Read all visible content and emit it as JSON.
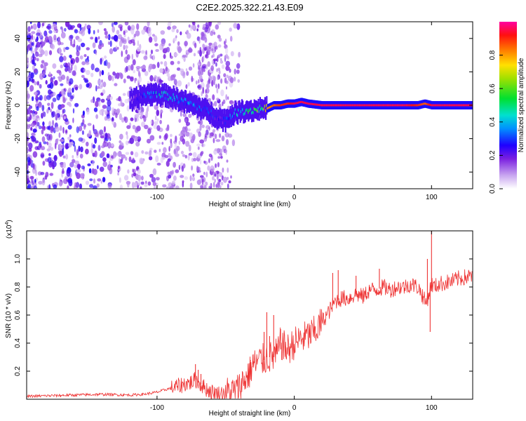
{
  "title": "C2E2.2025.322.21.43.E09",
  "chart_data": [
    {
      "type": "heatmap",
      "name": "spectrogram",
      "xlabel": "Height of straight line (km)",
      "ylabel": "Frequency (Hz)",
      "xlim": [
        -195,
        130
      ],
      "ylim": [
        -50,
        50
      ],
      "x_ticks": [
        -100,
        0,
        100
      ],
      "x_tick_labels": [
        "-100",
        "0",
        "100"
      ],
      "y_ticks": [
        -40,
        -20,
        0,
        20,
        40
      ],
      "y_tick_labels": [
        "-40",
        "-20",
        "0",
        "20",
        "40"
      ],
      "colorbar": {
        "label": "Normalized spectral amplitude",
        "range": [
          0,
          1
        ],
        "ticks": [
          0.0,
          0.2,
          0.4,
          0.6,
          0.8
        ],
        "tick_labels": [
          "0.0",
          "0.2",
          "0.4",
          "0.6",
          "0.8"
        ]
      },
      "ridge": {
        "x": [
          -120,
          -110,
          -100,
          -90,
          -80,
          -70,
          -60,
          -55,
          -50,
          -45,
          -40,
          -35,
          -30,
          -25,
          -20,
          -15,
          -10,
          -5,
          0,
          5,
          10,
          20,
          40,
          60,
          80,
          90,
          95,
          100,
          110,
          130
        ],
        "freq": [
          2,
          6,
          7,
          5,
          2,
          -1,
          -5,
          -8,
          -9,
          -5,
          -4,
          -3,
          -3,
          -2,
          -2,
          0,
          0,
          1,
          1,
          2,
          1,
          0,
          0,
          0,
          0,
          0,
          1,
          0,
          0,
          0
        ],
        "amplitude": [
          0.15,
          0.3,
          0.45,
          0.45,
          0.4,
          0.35,
          0.3,
          0.25,
          0.3,
          0.4,
          0.45,
          0.55,
          0.6,
          0.7,
          0.8,
          0.85,
          0.9,
          0.9,
          0.95,
          0.95,
          0.95,
          0.95,
          0.95,
          0.95,
          0.95,
          0.9,
          0.85,
          0.95,
          0.95,
          0.95
        ]
      },
      "noise_region_x": [
        -195,
        -50
      ]
    },
    {
      "type": "line",
      "name": "snr",
      "series": [
        {
          "name": "SNR",
          "color": "#ee3333",
          "x": [
            -195,
            -180,
            -160,
            -140,
            -120,
            -110,
            -100,
            -90,
            -85,
            -80,
            -75,
            -72,
            -70,
            -65,
            -60,
            -55,
            -50,
            -45,
            -42,
            -40,
            -38,
            -35,
            -32,
            -30,
            -28,
            -25,
            -22,
            -20,
            -18,
            -15,
            -12,
            -10,
            -8,
            -5,
            -2,
            0,
            5,
            10,
            15,
            20,
            25,
            30,
            35,
            40,
            45,
            50,
            55,
            60,
            65,
            70,
            75,
            80,
            85,
            90,
            93,
            96,
            98,
            100,
            102,
            105,
            110,
            115,
            120,
            125,
            130
          ],
          "y": [
            0.02,
            0.025,
            0.03,
            0.035,
            0.03,
            0.035,
            0.05,
            0.08,
            0.09,
            0.11,
            0.12,
            0.14,
            0.12,
            0.08,
            0.05,
            0.04,
            0.05,
            0.05,
            0.06,
            0.09,
            0.12,
            0.15,
            0.2,
            0.25,
            0.25,
            0.28,
            0.28,
            0.3,
            0.3,
            0.3,
            0.33,
            0.4,
            0.38,
            0.35,
            0.38,
            0.4,
            0.43,
            0.45,
            0.48,
            0.55,
            0.62,
            0.7,
            0.72,
            0.72,
            0.75,
            0.73,
            0.78,
            0.78,
            0.8,
            0.78,
            0.8,
            0.8,
            0.82,
            0.8,
            0.75,
            0.68,
            0.75,
            0.82,
            0.8,
            0.82,
            0.83,
            0.84,
            0.86,
            0.87,
            0.88
          ]
        }
      ],
      "spikes": [
        {
          "x": -72,
          "y": 0.25
        },
        {
          "x": -70,
          "y": 0.21
        },
        {
          "x": -68,
          "y": 0.18
        },
        {
          "x": -32,
          "y": 0.28
        },
        {
          "x": -30,
          "y": 0.32
        },
        {
          "x": -22,
          "y": 0.48
        },
        {
          "x": -20,
          "y": 0.62
        },
        {
          "x": -18,
          "y": 0.45
        },
        {
          "x": -15,
          "y": 0.6
        },
        {
          "x": -10,
          "y": 0.5
        },
        {
          "x": 28,
          "y": 0.9
        },
        {
          "x": 32,
          "y": 0.92
        },
        {
          "x": 45,
          "y": 0.88
        },
        {
          "x": 62,
          "y": 0.93
        },
        {
          "x": 97,
          "y": 1.0
        },
        {
          "x": 100,
          "y": 1.2
        },
        {
          "x": 99,
          "y": 0.48
        }
      ],
      "xlabel": "Height of straight line (km)",
      "ylabel": "SNR (10 * v/v)",
      "multiplier": "(x10",
      "multiplier_exp": "4",
      "multiplier_close": ")",
      "xlim": [
        -195,
        130
      ],
      "ylim": [
        0,
        1.2
      ],
      "x_ticks": [
        -100,
        0,
        100
      ],
      "x_tick_labels": [
        "-100",
        "0",
        "100"
      ],
      "y_ticks": [
        0.2,
        0.4,
        0.6,
        0.8,
        1.0
      ],
      "y_tick_labels": [
        "0.2",
        "0.4",
        "0.6",
        "0.8",
        "1.0"
      ]
    }
  ]
}
